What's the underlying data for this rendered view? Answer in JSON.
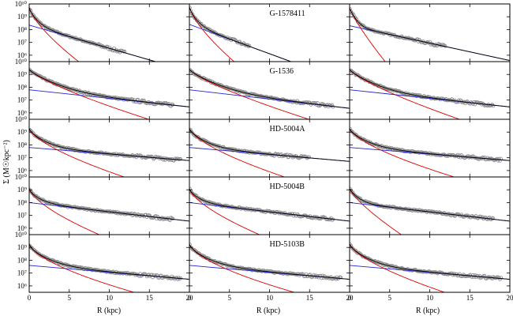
{
  "figure": {
    "ylabel": "Σ (M☉kpc⁻²)",
    "xlabel": "R (kpc)"
  },
  "chart_data": {
    "type": "scatter",
    "layout": {
      "rows": 5,
      "cols": 3
    },
    "xlim": [
      0,
      20
    ],
    "ylim_log10": [
      5.5,
      10
    ],
    "log_y": true,
    "x_ticks": [
      0,
      5,
      10,
      15,
      20
    ],
    "x_tick_labels": [
      "0",
      "5",
      "10",
      "15",
      "20"
    ],
    "y_ticks_log10": [
      6,
      7,
      8,
      9,
      10
    ],
    "y_tick_labels": [
      "10⁶",
      "10⁷",
      "10⁸",
      "10⁹",
      "10¹⁰"
    ],
    "top_panel_y_tick_labels": [
      "10⁶",
      "10⁷",
      "10⁸",
      "10⁹",
      "10¹⁰"
    ],
    "series_colors": {
      "data": "#8a8a8a",
      "bulge": "#dd0000",
      "disk": "#2222cc",
      "total": "#000000"
    },
    "row_labels": [
      "G-1578411",
      "G-1536",
      "HD-5004A",
      "HD-5004B",
      "HD-5103B"
    ],
    "panels": [
      {
        "row": 0,
        "col": 0,
        "bulge": {
          "s0": 9.75,
          "re": 0.9,
          "n": 1.4
        },
        "disk": {
          "s0": 8.35,
          "h": 2.4,
          "rmax": 20
        },
        "rmax": 12
      },
      {
        "row": 0,
        "col": 1,
        "bulge": {
          "s0": 9.8,
          "re": 0.8,
          "n": 1.4
        },
        "disk": {
          "s0": 8.4,
          "h": 1.9,
          "rmax": 10
        },
        "rmax": 7.5
      },
      {
        "row": 0,
        "col": 2,
        "bulge": {
          "s0": 9.7,
          "re": 0.7,
          "n": 1.2
        },
        "disk": {
          "s0": 8.3,
          "h": 3.2,
          "rmax": 15
        },
        "rmax": 12
      },
      {
        "row": 1,
        "col": 0,
        "bulge": {
          "s0": 9.4,
          "re": 2.5,
          "n": 1.3
        },
        "disk": {
          "s0": 7.8,
          "h": 6.5,
          "rmax": 20
        },
        "rmax": 18
      },
      {
        "row": 1,
        "col": 1,
        "bulge": {
          "s0": 9.4,
          "re": 2.5,
          "n": 1.3
        },
        "disk": {
          "s0": 7.8,
          "h": 6.0,
          "rmax": 20
        },
        "rmax": 18
      },
      {
        "row": 1,
        "col": 2,
        "bulge": {
          "s0": 9.4,
          "re": 2.3,
          "n": 1.3
        },
        "disk": {
          "s0": 7.8,
          "h": 6.5,
          "rmax": 20
        },
        "rmax": 18
      },
      {
        "row": 2,
        "col": 0,
        "bulge": {
          "s0": 9.3,
          "re": 2.0,
          "n": 1.5
        },
        "disk": {
          "s0": 7.8,
          "h": 8.5,
          "rmax": 20
        },
        "rmax": 19
      },
      {
        "row": 2,
        "col": 1,
        "bulge": {
          "s0": 9.3,
          "re": 2.0,
          "n": 1.5
        },
        "disk": {
          "s0": 7.8,
          "h": 8.0,
          "rmax": 20
        },
        "rmax": 15
      },
      {
        "row": 2,
        "col": 2,
        "bulge": {
          "s0": 9.3,
          "re": 2.2,
          "n": 1.5
        },
        "disk": {
          "s0": 7.8,
          "h": 8.5,
          "rmax": 20
        },
        "rmax": 19
      },
      {
        "row": 3,
        "col": 0,
        "bulge": {
          "s0": 9.1,
          "re": 1.6,
          "n": 1.5
        },
        "disk": {
          "s0": 8.0,
          "h": 6.0,
          "rmax": 20
        },
        "rmax": 18
      },
      {
        "row": 3,
        "col": 1,
        "bulge": {
          "s0": 9.1,
          "re": 1.6,
          "n": 1.5
        },
        "disk": {
          "s0": 8.0,
          "h": 6.0,
          "rmax": 20
        },
        "rmax": 18
      },
      {
        "row": 3,
        "col": 2,
        "bulge": {
          "s0": 9.1,
          "re": 1.2,
          "n": 1.3
        },
        "disk": {
          "s0": 8.0,
          "h": 6.0,
          "rmax": 20
        },
        "rmax": 18
      },
      {
        "row": 4,
        "col": 0,
        "bulge": {
          "s0": 9.3,
          "re": 2.2,
          "n": 1.6
        },
        "disk": {
          "s0": 7.6,
          "h": 8.0,
          "rmax": 20
        },
        "rmax": 19
      },
      {
        "row": 4,
        "col": 1,
        "bulge": {
          "s0": 9.3,
          "re": 2.2,
          "n": 1.6
        },
        "disk": {
          "s0": 7.6,
          "h": 8.0,
          "rmax": 20
        },
        "rmax": 19
      },
      {
        "row": 4,
        "col": 2,
        "bulge": {
          "s0": 9.3,
          "re": 2.0,
          "n": 1.5
        },
        "disk": {
          "s0": 7.6,
          "h": 8.0,
          "rmax": 20
        },
        "rmax": 19
      }
    ]
  }
}
